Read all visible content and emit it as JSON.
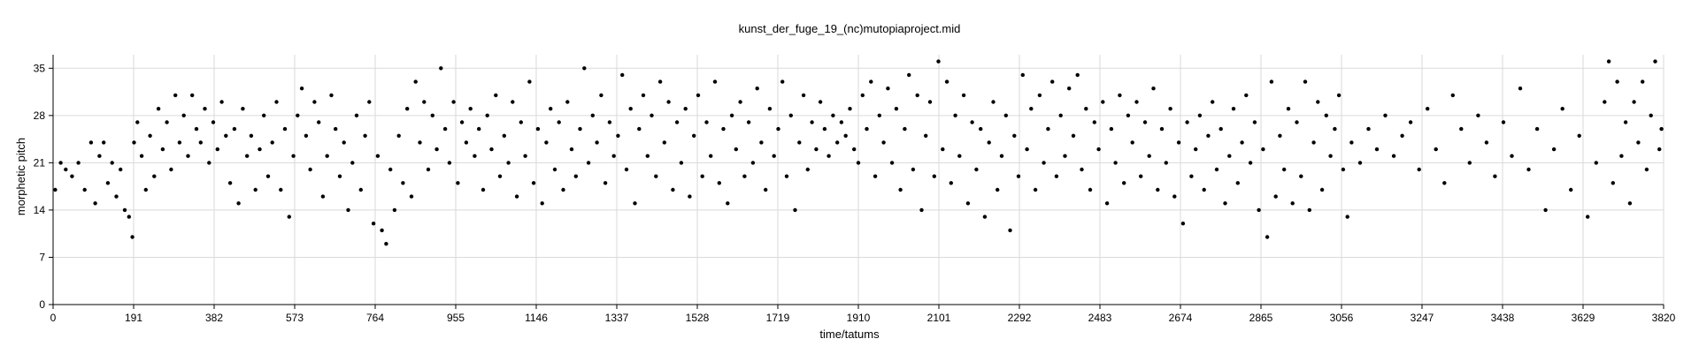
{
  "chart_data": {
    "type": "scatter",
    "title": "kunst_der_fuge_19_(nc)mutopiaproject.mid",
    "xlabel": "time/tatums",
    "ylabel": "morphetic pitch",
    "xlim": [
      0,
      3820
    ],
    "ylim": [
      0,
      37
    ],
    "xticks": [
      0,
      191,
      382,
      573,
      764,
      955,
      1146,
      1337,
      1528,
      1719,
      1910,
      2101,
      2292,
      2483,
      2674,
      2865,
      3056,
      3247,
      3438,
      3629,
      3820
    ],
    "yticks": [
      0,
      7,
      14,
      21,
      28,
      35
    ],
    "grid": true,
    "legend": "none",
    "point_color": "#000000",
    "points": [
      [
        5,
        17
      ],
      [
        18,
        21
      ],
      [
        30,
        20
      ],
      [
        45,
        19
      ],
      [
        60,
        21
      ],
      [
        75,
        17
      ],
      [
        90,
        24
      ],
      [
        100,
        15
      ],
      [
        110,
        22
      ],
      [
        120,
        24
      ],
      [
        130,
        18
      ],
      [
        140,
        21
      ],
      [
        150,
        16
      ],
      [
        160,
        20
      ],
      [
        170,
        14
      ],
      [
        180,
        13
      ],
      [
        188,
        10
      ],
      [
        192,
        24
      ],
      [
        200,
        27
      ],
      [
        210,
        22
      ],
      [
        220,
        17
      ],
      [
        230,
        25
      ],
      [
        240,
        19
      ],
      [
        250,
        29
      ],
      [
        260,
        23
      ],
      [
        270,
        27
      ],
      [
        280,
        20
      ],
      [
        290,
        31
      ],
      [
        300,
        24
      ],
      [
        310,
        28
      ],
      [
        320,
        22
      ],
      [
        330,
        31
      ],
      [
        340,
        26
      ],
      [
        350,
        24
      ],
      [
        360,
        29
      ],
      [
        370,
        21
      ],
      [
        380,
        27
      ],
      [
        390,
        23
      ],
      [
        400,
        30
      ],
      [
        410,
        25
      ],
      [
        420,
        18
      ],
      [
        430,
        26
      ],
      [
        440,
        15
      ],
      [
        450,
        29
      ],
      [
        460,
        22
      ],
      [
        470,
        25
      ],
      [
        480,
        17
      ],
      [
        490,
        23
      ],
      [
        500,
        28
      ],
      [
        510,
        19
      ],
      [
        520,
        24
      ],
      [
        530,
        30
      ],
      [
        540,
        17
      ],
      [
        550,
        26
      ],
      [
        560,
        13
      ],
      [
        570,
        22
      ],
      [
        580,
        28
      ],
      [
        590,
        32
      ],
      [
        600,
        25
      ],
      [
        610,
        20
      ],
      [
        620,
        30
      ],
      [
        630,
        27
      ],
      [
        640,
        16
      ],
      [
        650,
        22
      ],
      [
        660,
        31
      ],
      [
        670,
        26
      ],
      [
        680,
        19
      ],
      [
        690,
        24
      ],
      [
        700,
        14
      ],
      [
        710,
        21
      ],
      [
        720,
        28
      ],
      [
        730,
        17
      ],
      [
        740,
        25
      ],
      [
        750,
        30
      ],
      [
        760,
        12
      ],
      [
        770,
        22
      ],
      [
        780,
        11
      ],
      [
        790,
        9
      ],
      [
        800,
        20
      ],
      [
        810,
        14
      ],
      [
        820,
        25
      ],
      [
        830,
        18
      ],
      [
        840,
        29
      ],
      [
        850,
        16
      ],
      [
        860,
        33
      ],
      [
        870,
        24
      ],
      [
        880,
        30
      ],
      [
        890,
        20
      ],
      [
        900,
        28
      ],
      [
        910,
        23
      ],
      [
        920,
        35
      ],
      [
        930,
        26
      ],
      [
        940,
        21
      ],
      [
        950,
        30
      ],
      [
        960,
        18
      ],
      [
        970,
        27
      ],
      [
        980,
        24
      ],
      [
        990,
        29
      ],
      [
        1000,
        22
      ],
      [
        1010,
        26
      ],
      [
        1020,
        17
      ],
      [
        1030,
        28
      ],
      [
        1040,
        23
      ],
      [
        1050,
        31
      ],
      [
        1060,
        19
      ],
      [
        1070,
        25
      ],
      [
        1080,
        21
      ],
      [
        1090,
        30
      ],
      [
        1100,
        16
      ],
      [
        1110,
        27
      ],
      [
        1120,
        22
      ],
      [
        1130,
        33
      ],
      [
        1140,
        18
      ],
      [
        1150,
        26
      ],
      [
        1160,
        15
      ],
      [
        1170,
        24
      ],
      [
        1180,
        29
      ],
      [
        1190,
        20
      ],
      [
        1200,
        27
      ],
      [
        1210,
        17
      ],
      [
        1220,
        30
      ],
      [
        1230,
        23
      ],
      [
        1240,
        19
      ],
      [
        1250,
        26
      ],
      [
        1260,
        35
      ],
      [
        1270,
        21
      ],
      [
        1280,
        28
      ],
      [
        1290,
        24
      ],
      [
        1300,
        31
      ],
      [
        1310,
        18
      ],
      [
        1320,
        27
      ],
      [
        1330,
        22
      ],
      [
        1340,
        25
      ],
      [
        1350,
        34
      ],
      [
        1360,
        20
      ],
      [
        1370,
        29
      ],
      [
        1380,
        15
      ],
      [
        1390,
        26
      ],
      [
        1400,
        31
      ],
      [
        1410,
        22
      ],
      [
        1420,
        28
      ],
      [
        1430,
        19
      ],
      [
        1440,
        33
      ],
      [
        1450,
        24
      ],
      [
        1460,
        30
      ],
      [
        1470,
        17
      ],
      [
        1480,
        27
      ],
      [
        1490,
        21
      ],
      [
        1500,
        29
      ],
      [
        1510,
        16
      ],
      [
        1520,
        25
      ],
      [
        1530,
        31
      ],
      [
        1540,
        19
      ],
      [
        1550,
        27
      ],
      [
        1560,
        22
      ],
      [
        1570,
        33
      ],
      [
        1580,
        18
      ],
      [
        1590,
        26
      ],
      [
        1600,
        15
      ],
      [
        1610,
        28
      ],
      [
        1620,
        23
      ],
      [
        1630,
        30
      ],
      [
        1640,
        19
      ],
      [
        1650,
        27
      ],
      [
        1660,
        21
      ],
      [
        1670,
        32
      ],
      [
        1680,
        24
      ],
      [
        1690,
        17
      ],
      [
        1700,
        29
      ],
      [
        1710,
        22
      ],
      [
        1720,
        26
      ],
      [
        1730,
        33
      ],
      [
        1740,
        19
      ],
      [
        1750,
        28
      ],
      [
        1760,
        14
      ],
      [
        1770,
        24
      ],
      [
        1780,
        31
      ],
      [
        1790,
        20
      ],
      [
        1800,
        27
      ],
      [
        1810,
        23
      ],
      [
        1820,
        30
      ],
      [
        1830,
        26
      ],
      [
        1840,
        22
      ],
      [
        1850,
        28
      ],
      [
        1860,
        24
      ],
      [
        1870,
        27
      ],
      [
        1880,
        25
      ],
      [
        1890,
        29
      ],
      [
        1900,
        23
      ],
      [
        1910,
        21
      ],
      [
        1920,
        31
      ],
      [
        1930,
        26
      ],
      [
        1940,
        33
      ],
      [
        1950,
        19
      ],
      [
        1960,
        28
      ],
      [
        1970,
        24
      ],
      [
        1980,
        32
      ],
      [
        1990,
        21
      ],
      [
        2000,
        29
      ],
      [
        2010,
        17
      ],
      [
        2020,
        26
      ],
      [
        2030,
        34
      ],
      [
        2040,
        20
      ],
      [
        2050,
        31
      ],
      [
        2060,
        14
      ],
      [
        2070,
        25
      ],
      [
        2080,
        30
      ],
      [
        2090,
        19
      ],
      [
        2100,
        36
      ],
      [
        2110,
        23
      ],
      [
        2120,
        33
      ],
      [
        2130,
        18
      ],
      [
        2140,
        28
      ],
      [
        2150,
        22
      ],
      [
        2160,
        31
      ],
      [
        2170,
        15
      ],
      [
        2180,
        27
      ],
      [
        2190,
        20
      ],
      [
        2200,
        26
      ],
      [
        2210,
        13
      ],
      [
        2220,
        24
      ],
      [
        2230,
        30
      ],
      [
        2240,
        17
      ],
      [
        2250,
        22
      ],
      [
        2260,
        28
      ],
      [
        2270,
        11
      ],
      [
        2280,
        25
      ],
      [
        2290,
        19
      ],
      [
        2300,
        34
      ],
      [
        2310,
        23
      ],
      [
        2320,
        29
      ],
      [
        2330,
        17
      ],
      [
        2340,
        31
      ],
      [
        2350,
        21
      ],
      [
        2360,
        26
      ],
      [
        2370,
        33
      ],
      [
        2380,
        19
      ],
      [
        2390,
        28
      ],
      [
        2400,
        22
      ],
      [
        2410,
        32
      ],
      [
        2420,
        25
      ],
      [
        2430,
        34
      ],
      [
        2440,
        20
      ],
      [
        2450,
        29
      ],
      [
        2460,
        17
      ],
      [
        2470,
        27
      ],
      [
        2480,
        23
      ],
      [
        2490,
        30
      ],
      [
        2500,
        15
      ],
      [
        2510,
        26
      ],
      [
        2520,
        21
      ],
      [
        2530,
        31
      ],
      [
        2540,
        18
      ],
      [
        2550,
        28
      ],
      [
        2560,
        24
      ],
      [
        2570,
        30
      ],
      [
        2580,
        19
      ],
      [
        2590,
        27
      ],
      [
        2600,
        22
      ],
      [
        2610,
        32
      ],
      [
        2620,
        17
      ],
      [
        2630,
        26
      ],
      [
        2640,
        21
      ],
      [
        2650,
        29
      ],
      [
        2660,
        16
      ],
      [
        2670,
        24
      ],
      [
        2680,
        12
      ],
      [
        2690,
        27
      ],
      [
        2700,
        19
      ],
      [
        2710,
        23
      ],
      [
        2720,
        28
      ],
      [
        2730,
        17
      ],
      [
        2740,
        25
      ],
      [
        2750,
        30
      ],
      [
        2760,
        20
      ],
      [
        2770,
        26
      ],
      [
        2780,
        15
      ],
      [
        2790,
        22
      ],
      [
        2800,
        29
      ],
      [
        2810,
        18
      ],
      [
        2820,
        24
      ],
      [
        2830,
        31
      ],
      [
        2840,
        21
      ],
      [
        2850,
        27
      ],
      [
        2860,
        14
      ],
      [
        2870,
        23
      ],
      [
        2880,
        10
      ],
      [
        2890,
        33
      ],
      [
        2900,
        16
      ],
      [
        2910,
        25
      ],
      [
        2920,
        20
      ],
      [
        2930,
        29
      ],
      [
        2940,
        15
      ],
      [
        2950,
        27
      ],
      [
        2960,
        19
      ],
      [
        2970,
        33
      ],
      [
        2980,
        14
      ],
      [
        2990,
        24
      ],
      [
        3000,
        30
      ],
      [
        3010,
        17
      ],
      [
        3020,
        28
      ],
      [
        3030,
        22
      ],
      [
        3040,
        26
      ],
      [
        3050,
        31
      ],
      [
        3060,
        20
      ],
      [
        3070,
        13
      ],
      [
        3080,
        24
      ],
      [
        3100,
        21
      ],
      [
        3120,
        26
      ],
      [
        3140,
        23
      ],
      [
        3160,
        28
      ],
      [
        3180,
        22
      ],
      [
        3200,
        25
      ],
      [
        3220,
        27
      ],
      [
        3240,
        20
      ],
      [
        3260,
        29
      ],
      [
        3280,
        23
      ],
      [
        3300,
        18
      ],
      [
        3320,
        31
      ],
      [
        3340,
        26
      ],
      [
        3360,
        21
      ],
      [
        3380,
        28
      ],
      [
        3400,
        24
      ],
      [
        3420,
        19
      ],
      [
        3440,
        27
      ],
      [
        3460,
        22
      ],
      [
        3480,
        32
      ],
      [
        3500,
        20
      ],
      [
        3520,
        26
      ],
      [
        3540,
        14
      ],
      [
        3560,
        23
      ],
      [
        3580,
        29
      ],
      [
        3600,
        17
      ],
      [
        3620,
        25
      ],
      [
        3640,
        13
      ],
      [
        3660,
        21
      ],
      [
        3680,
        30
      ],
      [
        3690,
        36
      ],
      [
        3700,
        18
      ],
      [
        3710,
        33
      ],
      [
        3720,
        22
      ],
      [
        3730,
        27
      ],
      [
        3740,
        15
      ],
      [
        3750,
        30
      ],
      [
        3760,
        24
      ],
      [
        3770,
        33
      ],
      [
        3780,
        20
      ],
      [
        3790,
        28
      ],
      [
        3800,
        36
      ],
      [
        3810,
        23
      ],
      [
        3815,
        26
      ]
    ]
  }
}
